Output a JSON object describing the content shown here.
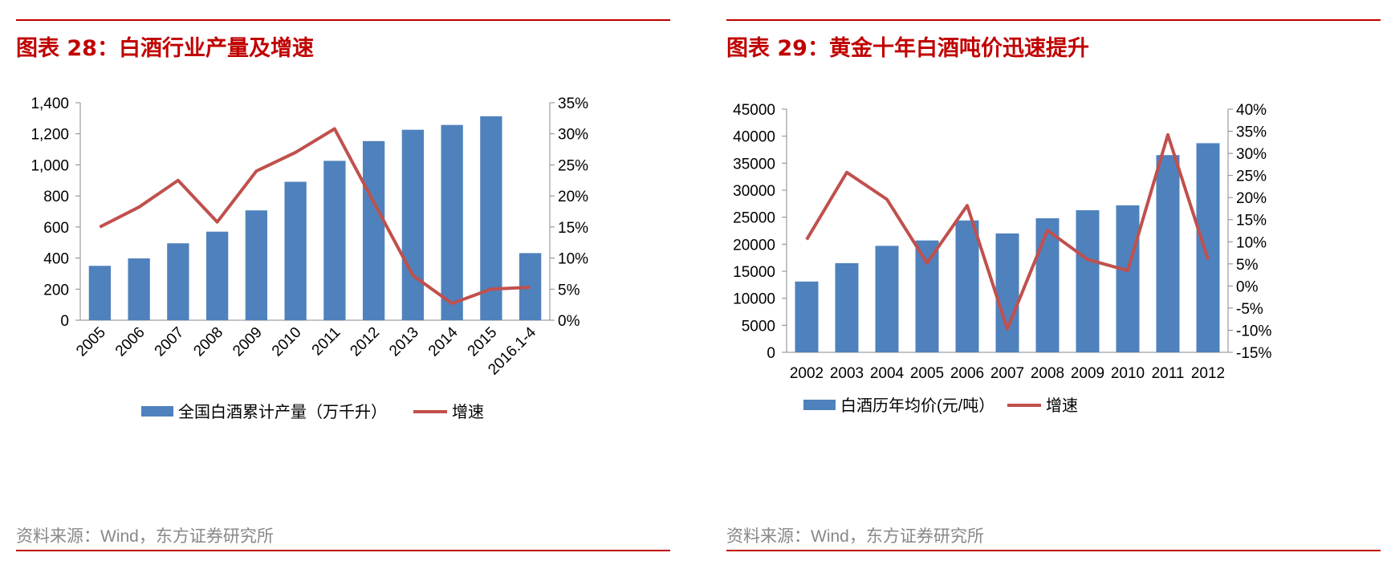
{
  "colors": {
    "accent": "#c00000",
    "bar": "#4f81bd",
    "line": "#c0504d",
    "axis": "#888888",
    "source": "#888888"
  },
  "charts": [
    {
      "title": "图表 28：白酒行业产量及增速",
      "source": "资料来源：Wind，东方证券研究所",
      "chart_data": {
        "type": "bar",
        "title": "白酒行业产量及增速",
        "categories": [
          "2005",
          "2006",
          "2007",
          "2008",
          "2009",
          "2010",
          "2011",
          "2012",
          "2013",
          "2014",
          "2015",
          "2016.1-4"
        ],
        "series": [
          {
            "name": "全国白酒累计产量（万千升）",
            "type": "bar",
            "axis": "left",
            "values": [
              350,
              398,
              495,
              570,
              707,
              891,
              1026,
              1153,
              1226,
              1257,
              1313,
              432
            ]
          },
          {
            "name": "增速",
            "type": "line",
            "axis": "right",
            "values": [
              15.0,
              18.2,
              22.5,
              15.8,
              24.0,
              27.0,
              30.8,
              19.0,
              7.2,
              2.7,
              5.0,
              5.3
            ]
          }
        ],
        "ylim": [
          0,
          1400
        ],
        "yticks": [
          "0",
          "200",
          "400",
          "600",
          "800",
          "1,000",
          "1,200",
          "1,400"
        ],
        "y2lim": [
          0,
          35
        ],
        "y2ticks": [
          "0%",
          "5%",
          "10%",
          "15%",
          "20%",
          "25%",
          "30%",
          "35%"
        ],
        "xlabel": "",
        "ylabel": "",
        "legend": "bottom"
      }
    },
    {
      "title": "图表 29：黄金十年白酒吨价迅速提升",
      "source": "资料来源：Wind，东方证券研究所",
      "chart_data": {
        "type": "bar",
        "title": "黄金十年白酒吨价迅速提升",
        "categories": [
          "2002",
          "2003",
          "2004",
          "2005",
          "2006",
          "2007",
          "2008",
          "2009",
          "2010",
          "2011",
          "2012"
        ],
        "series": [
          {
            "name": "白酒历年均价(元/吨）",
            "type": "bar",
            "axis": "left",
            "values": [
              13100,
              16500,
              19700,
              20700,
              24400,
              22000,
              24800,
              26300,
              27200,
              36500,
              38700
            ]
          },
          {
            "name": "增速",
            "type": "line",
            "axis": "right",
            "values": [
              10.5,
              25.7,
              19.6,
              5.2,
              18.2,
              -9.7,
              12.6,
              6.0,
              3.5,
              34.2,
              6.0
            ]
          }
        ],
        "ylim": [
          0,
          45000
        ],
        "yticks": [
          "0",
          "5000",
          "10000",
          "15000",
          "20000",
          "25000",
          "30000",
          "35000",
          "40000",
          "45000"
        ],
        "y2lim": [
          -15,
          40
        ],
        "y2ticks": [
          "-15%",
          "-10%",
          "-5%",
          "0%",
          "5%",
          "10%",
          "15%",
          "20%",
          "25%",
          "30%",
          "35%",
          "40%"
        ],
        "xlabel": "",
        "ylabel": "",
        "legend": "bottom"
      }
    }
  ]
}
